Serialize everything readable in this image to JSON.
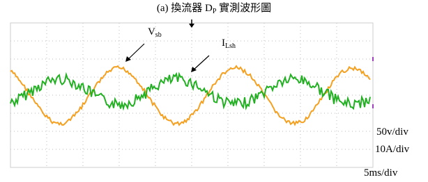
{
  "figure": {
    "title": {
      "prefix": "(a) 換流器 D",
      "subscript": "P",
      "suffix": " 實測波形圖"
    },
    "labels": {
      "vsb": {
        "main": "V",
        "sub": "sb"
      },
      "ilsh": {
        "main": "I",
        "sub": "Lsh"
      }
    },
    "scales": [
      "50v/div",
      "10A/div",
      "5ms/div"
    ]
  }
}
